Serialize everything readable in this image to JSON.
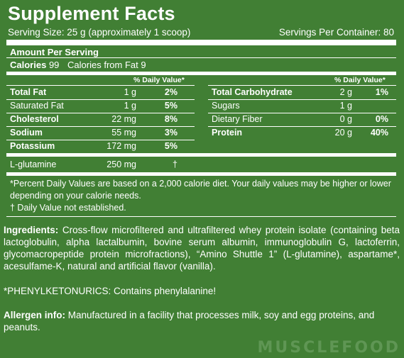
{
  "header": {
    "title": "Supplement Facts",
    "serving_size": "Serving Size: 25 g (approximately 1 scoop)",
    "servings_per_container": "Servings Per Container: 80"
  },
  "amount_per_serving": "Amount Per Serving",
  "calories": {
    "label": "Calories",
    "value": "99",
    "from_fat": "Calories from Fat 9"
  },
  "dv_header": "% Daily Value*",
  "left_rows": [
    {
      "name": "Total Fat",
      "amount": "1 g",
      "dv": "2%",
      "bold": true
    },
    {
      "name": "Saturated Fat",
      "amount": "1 g",
      "dv": "5%",
      "bold": false
    },
    {
      "name": "Cholesterol",
      "amount": "22 mg",
      "dv": "8%",
      "bold": true
    },
    {
      "name": "Sodium",
      "amount": "55 mg",
      "dv": "3%",
      "bold": true
    },
    {
      "name": "Potassium",
      "amount": "172 mg",
      "dv": "5%",
      "bold": true
    },
    {
      "name": "L-glutamine",
      "amount": "250 mg",
      "dv": "†",
      "bold": false
    }
  ],
  "right_rows": [
    {
      "name": "Total Carbohydrate",
      "amount": "2 g",
      "dv": "1%",
      "bold": true
    },
    {
      "name": "Sugars",
      "amount": "1 g",
      "dv": "",
      "bold": false
    },
    {
      "name": "Dietary Fiber",
      "amount": "0 g",
      "dv": "0%",
      "bold": false
    },
    {
      "name": "Protein",
      "amount": "20 g",
      "dv": "40%",
      "bold": true
    }
  ],
  "footnote": {
    "line1": "*Percent Daily Values are based on a 2,000 calorie diet. Your daily values may be higher or lower",
    "line2": "depending on your calorie needs.",
    "line3": "† Daily Value not established."
  },
  "ingredients": {
    "label": "Ingredients:",
    "text": "Cross-flow microfiltered and ultrafiltered whey protein isolate (containing beta lactoglobulin, alpha lactalbumin, bovine serum albumin, immunoglobulin G, lactoferrin, glycomacropeptide protein microfractions), “Amino Shuttle 1” (L-glutamine), aspartame*, acesulfame-K, natural and artificial flavor (vanilla)."
  },
  "pku_warning": "*PHENYLKETONURICS: Contains phenylalanine!",
  "allergen": {
    "label": "Allergen info:",
    "text": "Manufactured in a facility that processes milk, soy and egg proteins, and peanuts."
  },
  "watermark": "MUSCLEFOOD"
}
